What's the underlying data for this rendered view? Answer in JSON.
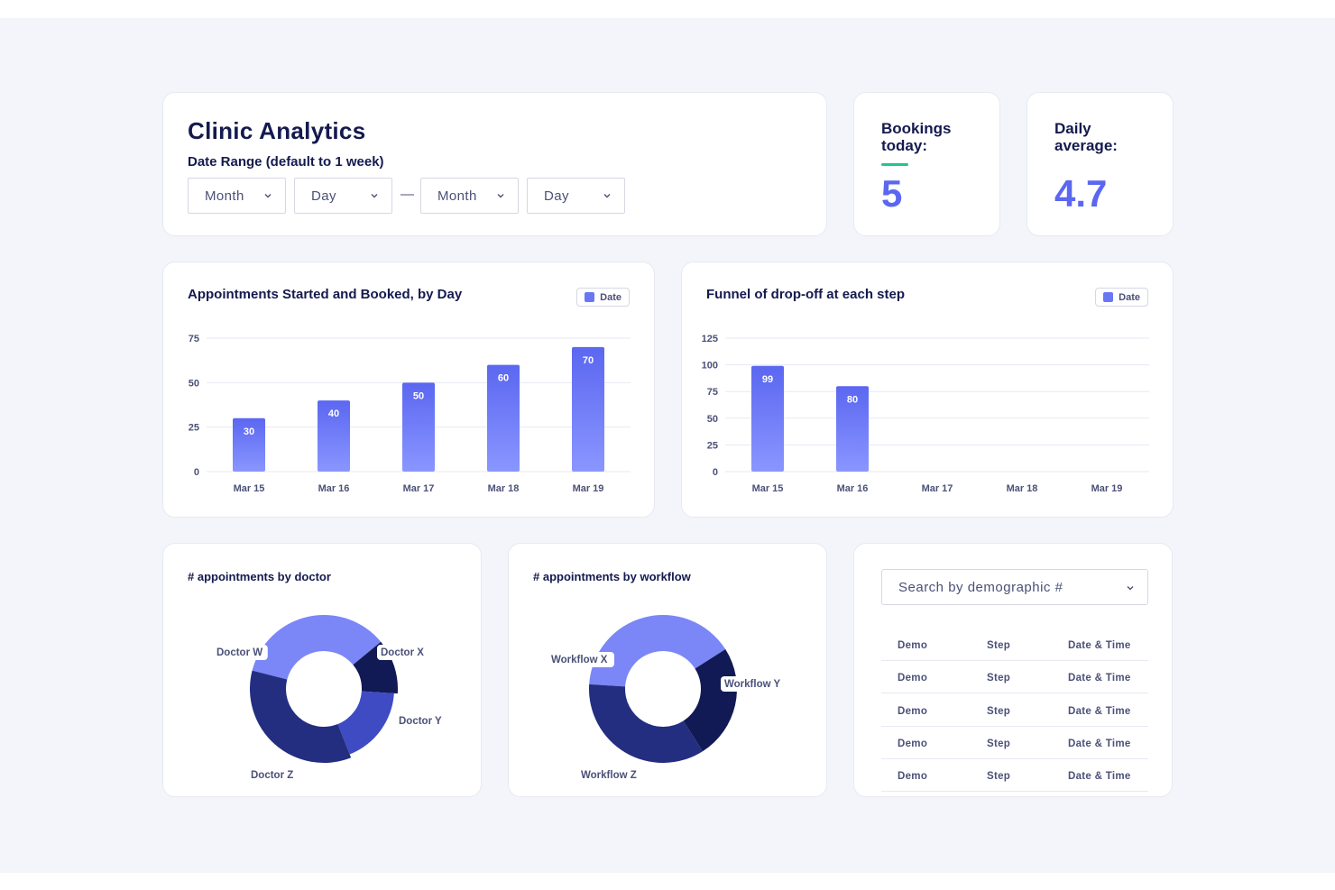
{
  "header": {
    "title": "Clinic Analytics",
    "subtitle": "Date Range (default to 1 week)",
    "dash": "—",
    "selects": [
      "Month",
      "Day",
      "Month",
      "Day"
    ]
  },
  "stats": {
    "bookings_label": "Bookings today:",
    "bookings_value": "5",
    "average_label": "Daily average:",
    "average_value": "4.7"
  },
  "colors": {
    "accent": "#5b67f0",
    "bar_top": "#5b67f0",
    "bar_bottom": "#8a96ff",
    "highlight": "#22c58a",
    "pie_light": "#7b86f7",
    "pie_mid": "#3e4bc3",
    "pie_dark": "#232e80",
    "pie_darkest": "#121a55"
  },
  "chart_data": [
    {
      "type": "bar",
      "title": "Appointments Started and Booked, by Day",
      "legend": "Date",
      "categories": [
        "Mar 15",
        "Mar 16",
        "Mar 17",
        "Mar 18",
        "Mar 19"
      ],
      "values": [
        30,
        40,
        50,
        60,
        70
      ],
      "yticks": [
        0,
        25,
        50,
        75
      ],
      "ylim": [
        0,
        75
      ],
      "grid": true,
      "legend_position": "top-right"
    },
    {
      "type": "bar",
      "title": "Funnel of drop-off at each step",
      "legend": "Date",
      "categories": [
        "Mar 15",
        "Mar 16",
        "Mar 17",
        "Mar 18",
        "Mar 19"
      ],
      "values": [
        99,
        80,
        null,
        null,
        null
      ],
      "yticks": [
        0,
        25,
        50,
        75,
        100,
        125
      ],
      "ylim": [
        0,
        125
      ],
      "grid": true,
      "legend_position": "top-right"
    },
    {
      "type": "pie",
      "title": "# appointments by doctor",
      "labels": [
        "Doctor W",
        "Doctor X",
        "Doctor Y",
        "Doctor Z"
      ],
      "values": [
        35,
        12,
        18,
        35
      ]
    },
    {
      "type": "pie",
      "title": "# appointments by workflow",
      "labels": [
        "Workflow X",
        "Workflow Y",
        "Workflow Z"
      ],
      "values": [
        40,
        25,
        35
      ]
    }
  ],
  "demographics": {
    "search_placeholder": "Search by demographic #",
    "rows": [
      {
        "demo": "Demo",
        "step": "Step",
        "datetime": "Date & Time"
      },
      {
        "demo": "Demo",
        "step": "Step",
        "datetime": "Date & Time"
      },
      {
        "demo": "Demo",
        "step": "Step",
        "datetime": "Date & Time"
      },
      {
        "demo": "Demo",
        "step": "Step",
        "datetime": "Date & Time"
      },
      {
        "demo": "Demo",
        "step": "Step",
        "datetime": "Date & Time"
      }
    ]
  }
}
